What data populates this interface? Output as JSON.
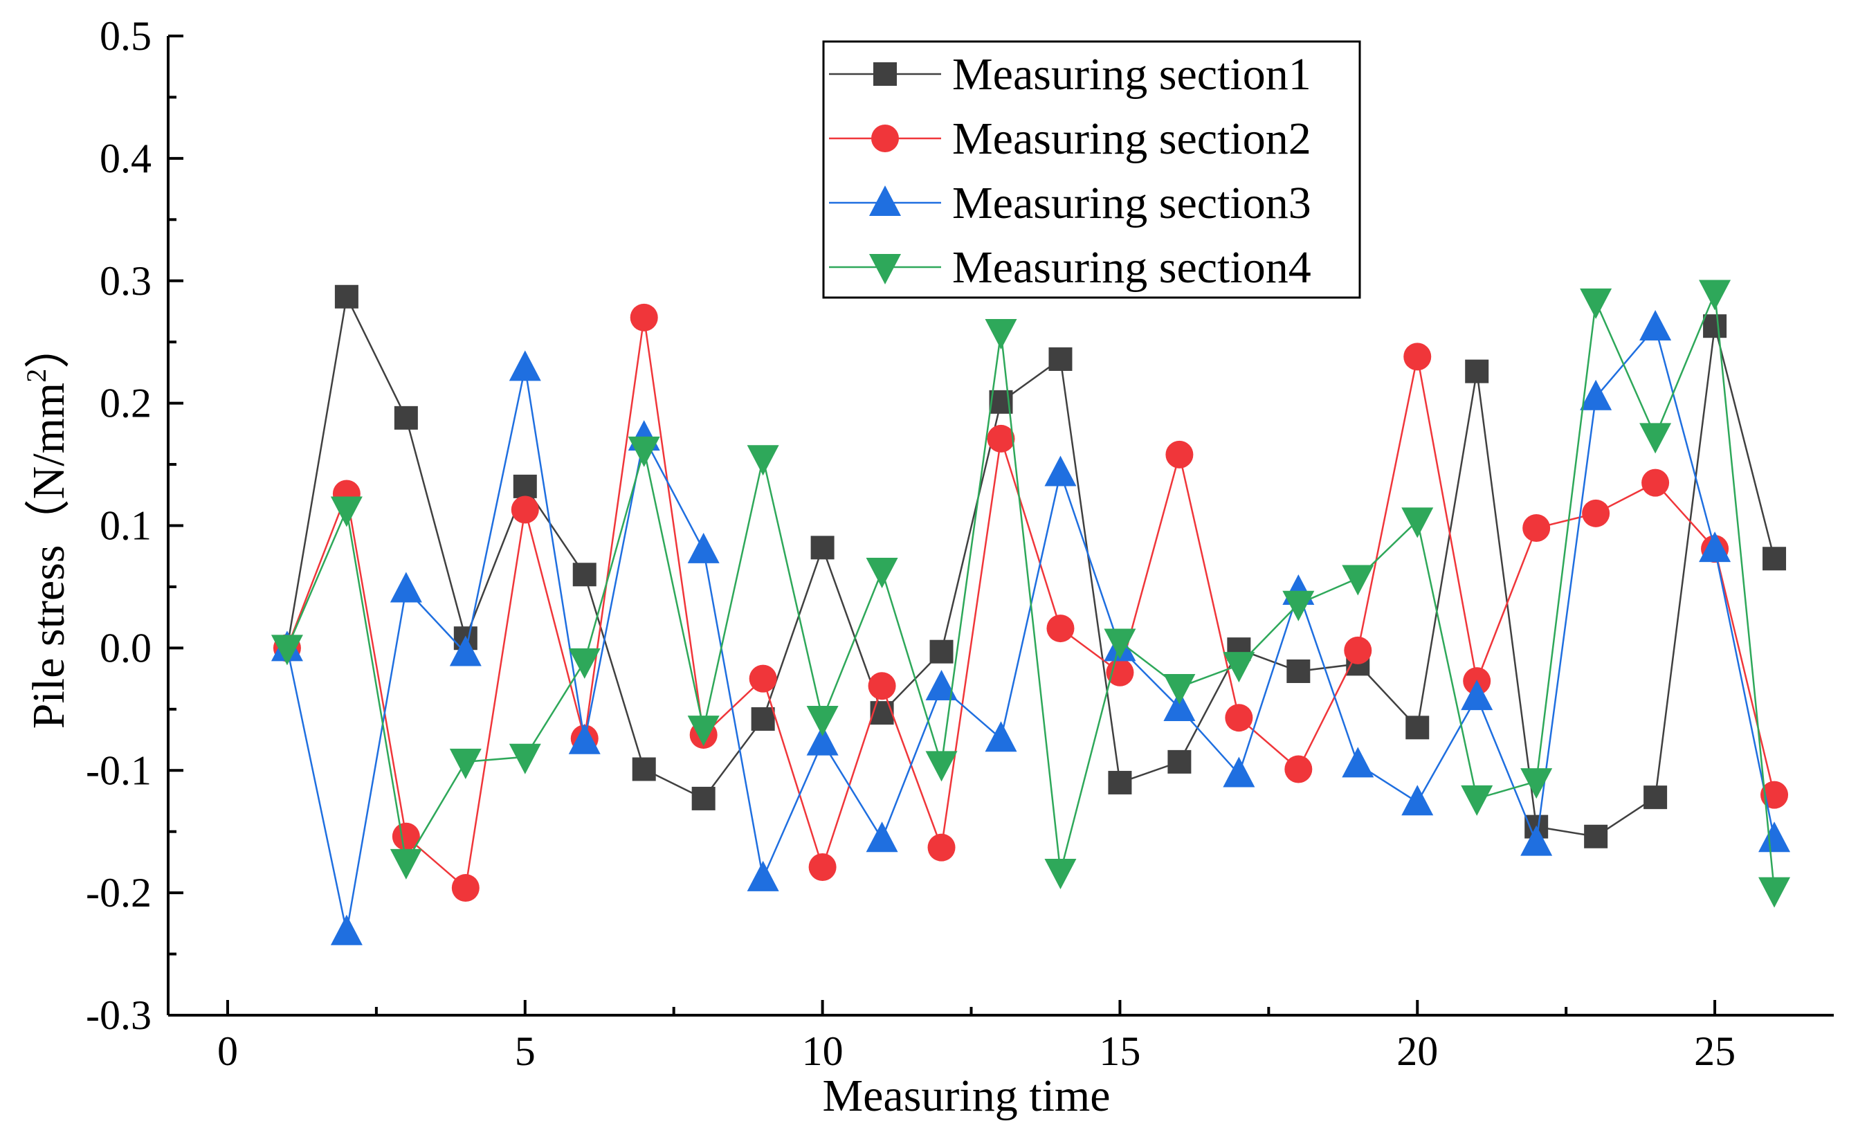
{
  "chart_data": {
    "type": "line",
    "title": "",
    "xlabel": "Measuring time",
    "ylabel": "Pile stress（N/mm",
    "ylabel_superscript": "2",
    "ylabel_close": "）",
    "xlim": [
      -1,
      27
    ],
    "ylim": [
      -0.3,
      0.5
    ],
    "xticks": [
      0,
      5,
      10,
      15,
      20,
      25
    ],
    "xtick_labels": [
      "0",
      "5",
      "10",
      "15",
      "20",
      "25"
    ],
    "yticks": [
      -0.3,
      -0.2,
      -0.1,
      0.0,
      0.1,
      0.2,
      0.3,
      0.4,
      0.5
    ],
    "ytick_labels": [
      "-0.3",
      "-0.2",
      "-0.1",
      "0.0",
      "0.1",
      "0.2",
      "0.3",
      "0.4",
      "0.5"
    ],
    "grid": false,
    "legend_position": "top-center",
    "x": [
      1,
      2,
      3,
      4,
      5,
      6,
      7,
      8,
      9,
      10,
      11,
      12,
      13,
      14,
      15,
      16,
      17,
      18,
      19,
      20,
      21,
      22,
      23,
      24,
      25,
      26
    ],
    "series": [
      {
        "name": "Measuring section1",
        "color": "#404040",
        "marker": "square",
        "values": [
          0.0,
          0.287,
          0.188,
          0.008,
          0.132,
          0.06,
          -0.099,
          -0.123,
          -0.058,
          0.082,
          -0.053,
          -0.003,
          0.201,
          0.236,
          -0.11,
          -0.093,
          -0.001,
          -0.019,
          -0.013,
          -0.065,
          0.226,
          -0.146,
          -0.154,
          -0.122,
          0.263,
          0.073
        ]
      },
      {
        "name": "Measuring section2",
        "color": "#f0363a",
        "marker": "circle",
        "values": [
          0.0,
          0.126,
          -0.154,
          -0.196,
          0.113,
          -0.074,
          0.27,
          -0.071,
          -0.025,
          -0.179,
          -0.031,
          -0.163,
          0.171,
          0.016,
          -0.02,
          0.158,
          -0.057,
          -0.099,
          -0.002,
          0.238,
          -0.027,
          0.098,
          0.11,
          0.135,
          0.081,
          -0.12
        ]
      },
      {
        "name": "Measuring section3",
        "color": "#1f6fe0",
        "marker": "triangle-up",
        "values": [
          0.0,
          -0.232,
          0.048,
          -0.004,
          0.229,
          -0.076,
          0.172,
          0.08,
          -0.188,
          -0.077,
          -0.156,
          -0.032,
          -0.074,
          0.143,
          0.0,
          -0.049,
          -0.103,
          0.046,
          -0.095,
          -0.126,
          -0.04,
          -0.159,
          0.205,
          0.262,
          0.081,
          -0.156
        ]
      },
      {
        "name": "Measuring section4",
        "color": "#2ea85a",
        "marker": "triangle-down",
        "values": [
          0.0,
          0.113,
          -0.175,
          -0.093,
          -0.089,
          -0.011,
          0.162,
          -0.066,
          0.155,
          -0.058,
          0.063,
          -0.095,
          0.258,
          -0.183,
          0.005,
          -0.032,
          -0.014,
          0.036,
          0.057,
          0.104,
          -0.123,
          -0.109,
          0.283,
          0.173,
          0.29,
          -0.198
        ]
      }
    ]
  }
}
